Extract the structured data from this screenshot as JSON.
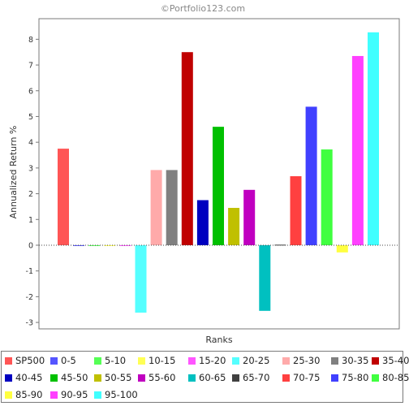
{
  "watermark": "©Portfolio123.com",
  "colors": {
    "frame": "#7a7a7a",
    "tick_text": "#333333",
    "zero_line": "#444444"
  },
  "chart_data": {
    "type": "bar",
    "xlabel": "Ranks",
    "ylabel": "Annualized Return %",
    "ylim": [
      -3.25,
      8.8
    ],
    "yticks": [
      -3,
      -2,
      -1,
      0,
      1,
      2,
      3,
      4,
      5,
      6,
      7,
      8
    ],
    "grid": false,
    "legend_position": "bottom",
    "categories": [
      "SP500",
      "0-5",
      "5-10",
      "10-15",
      "15-20",
      "20-25",
      "25-30",
      "30-35",
      "35-40",
      "40-45",
      "45-50",
      "50-55",
      "55-60",
      "60-65",
      "65-70",
      "70-75",
      "75-80",
      "80-85",
      "85-90",
      "90-95",
      "95-100"
    ],
    "values": [
      3.75,
      0.0,
      0.0,
      0.0,
      0.0,
      -2.62,
      2.92,
      2.92,
      7.5,
      1.75,
      4.6,
      1.45,
      2.15,
      -2.55,
      0.02,
      2.68,
      5.38,
      3.72,
      -0.28,
      7.35,
      8.27
    ],
    "series_colors": [
      "#ff5555",
      "#5555ff",
      "#55ff55",
      "#ffff55",
      "#ff55ff",
      "#55ffff",
      "#ffaaaa",
      "#808080",
      "#c00000",
      "#0000c0",
      "#00c000",
      "#c0c000",
      "#c000c0",
      "#00c0c0",
      "#404040",
      "#ff4040",
      "#4040ff",
      "#40ff40",
      "#ffff40",
      "#ff40ff",
      "#40ffff"
    ]
  }
}
